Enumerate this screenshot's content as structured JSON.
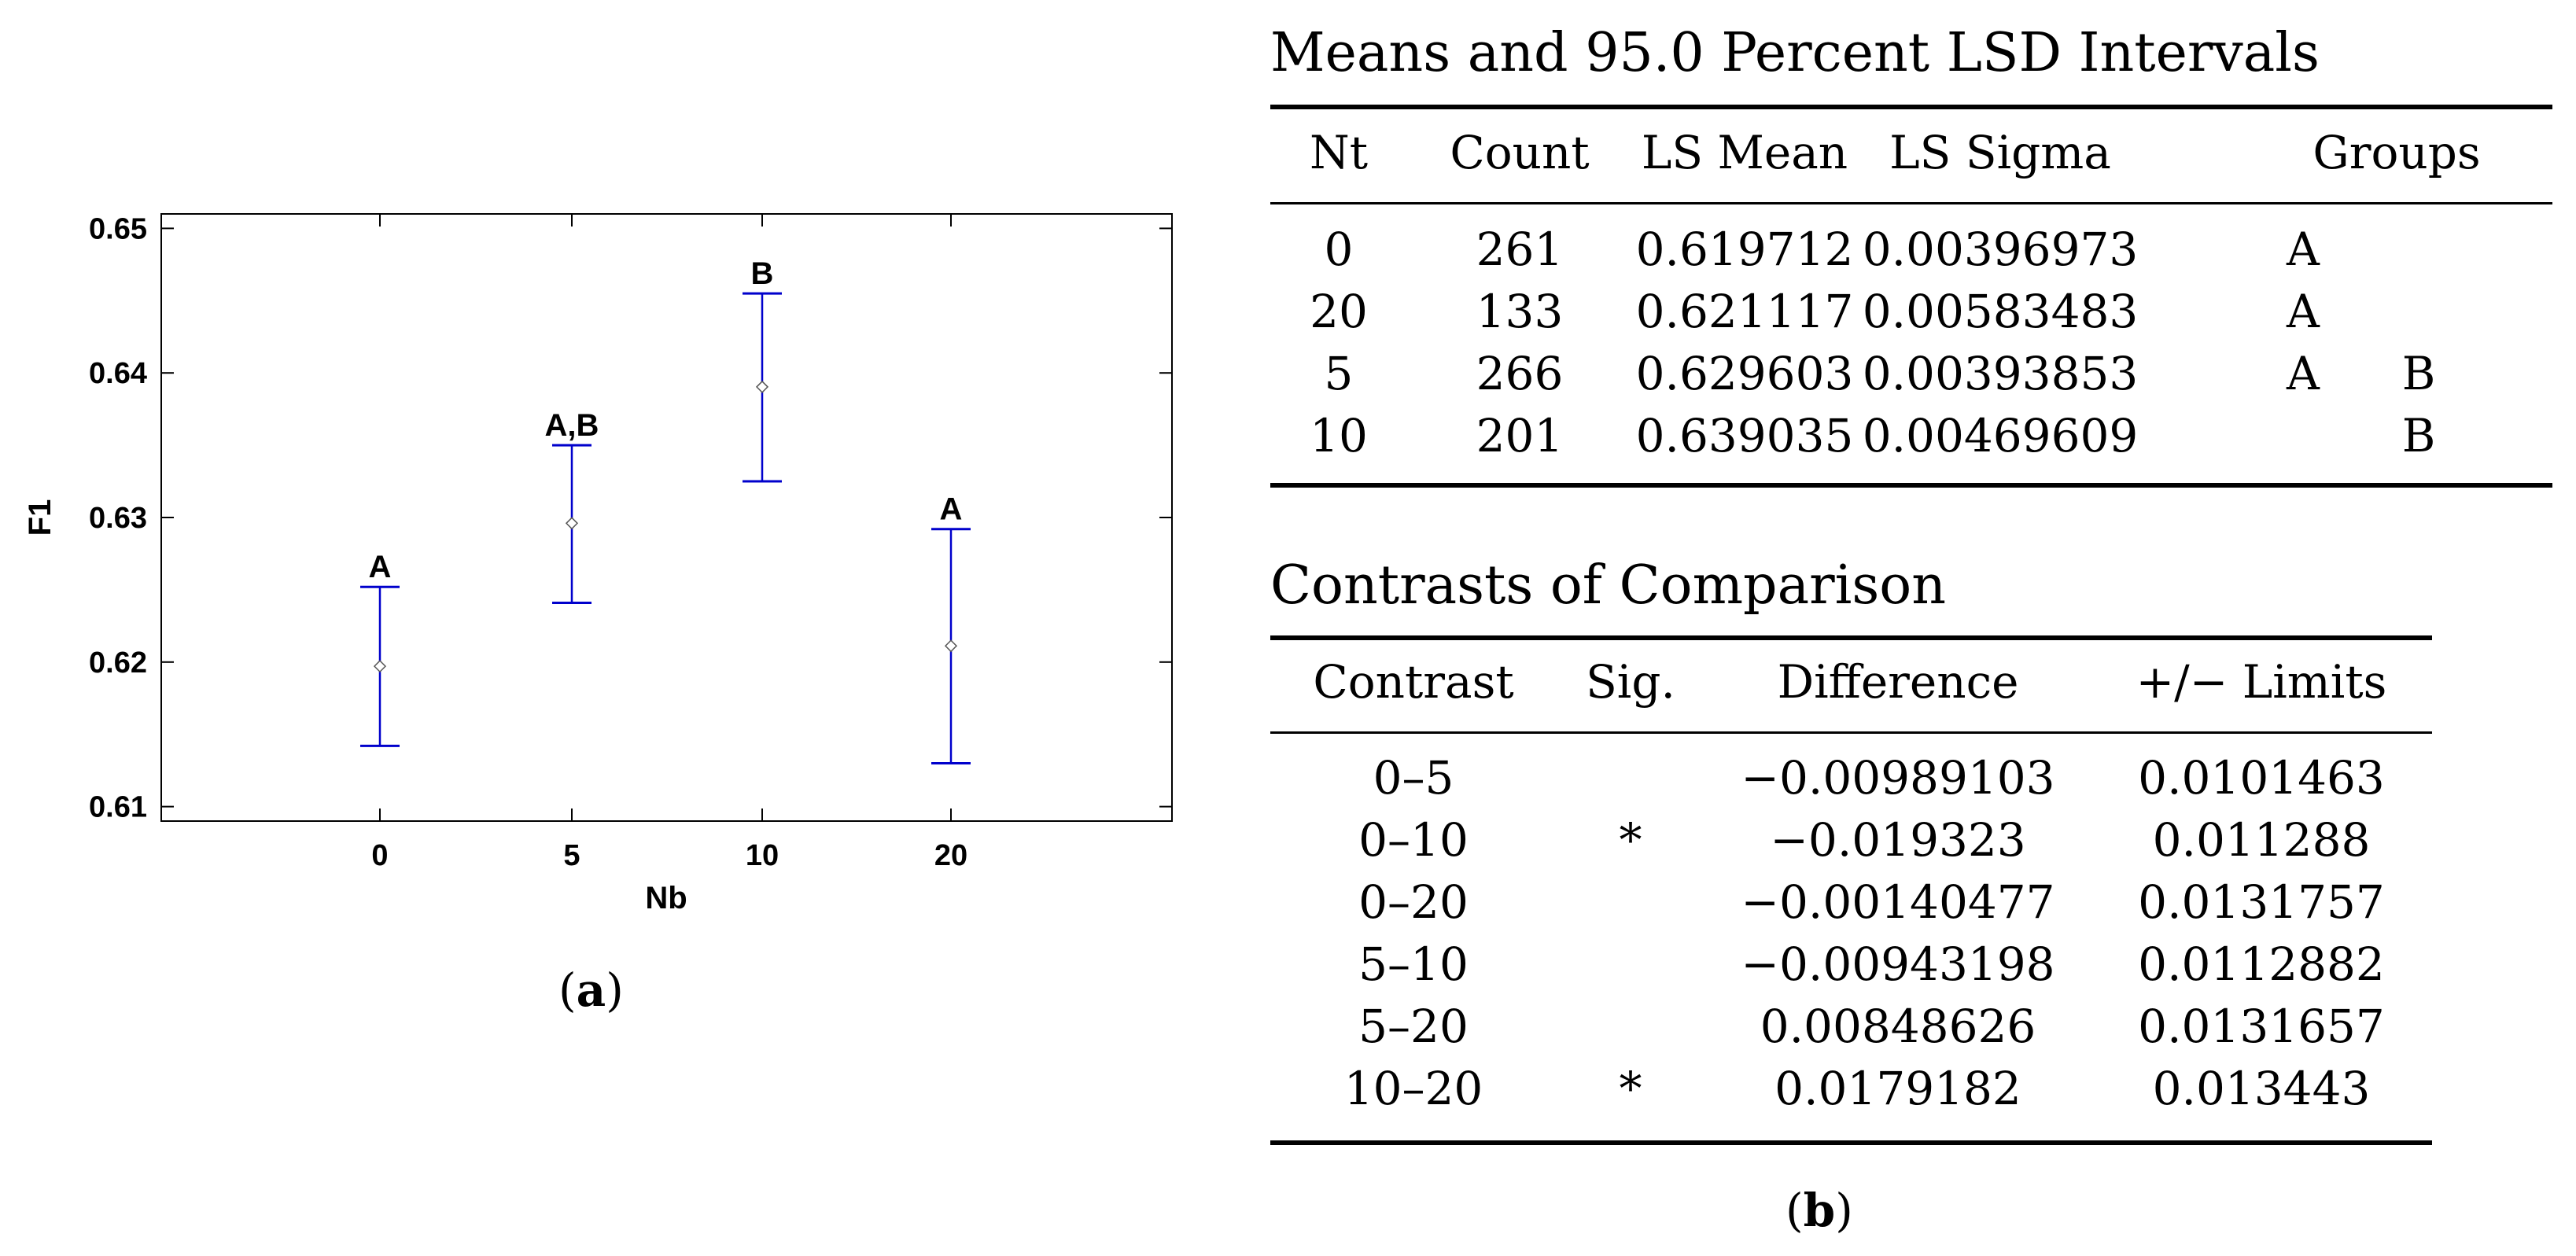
{
  "chart_data": {
    "type": "scatter",
    "subtype": "means-with-lsd-intervals",
    "xlabel": "Nb",
    "ylabel": "F1",
    "categories": [
      "0",
      "5",
      "10",
      "20"
    ],
    "means": [
      0.619712,
      0.629603,
      0.639035,
      0.621117
    ],
    "lower": [
      0.6142,
      0.6241,
      0.6325,
      0.613
    ],
    "upper": [
      0.6252,
      0.635,
      0.6455,
      0.6292
    ],
    "group_labels": [
      "A",
      "A,B",
      "B",
      "A"
    ],
    "ylim": [
      0.609,
      0.651
    ],
    "yticks": [
      0.61,
      0.62,
      0.63,
      0.64,
      0.65
    ],
    "ytick_labels": [
      "0.61",
      "0.62",
      "0.63",
      "0.64",
      "0.65"
    ],
    "interval_color": "#0000cc",
    "marker_color": "#555555"
  },
  "panel_a_label": {
    "open": "(",
    "letter": "a",
    "close": ")"
  },
  "panel_b_label": {
    "open": "(",
    "letter": "b",
    "close": ")"
  },
  "means_table": {
    "title": "Means and 95.0 Percent LSD Intervals",
    "headers": [
      "Nt",
      "Count",
      "LS Mean",
      "LS Sigma",
      "Groups"
    ],
    "rows": [
      {
        "nt": "0",
        "count": "261",
        "mean": "0.619712",
        "sigma": "0.00396973",
        "g1": "A",
        "g2": ""
      },
      {
        "nt": "20",
        "count": "133",
        "mean": "0.621117",
        "sigma": "0.00583483",
        "g1": "A",
        "g2": ""
      },
      {
        "nt": "5",
        "count": "266",
        "mean": "0.629603",
        "sigma": "0.00393853",
        "g1": "A",
        "g2": "B"
      },
      {
        "nt": "10",
        "count": "201",
        "mean": "0.639035",
        "sigma": "0.00469609",
        "g1": "",
        "g2": "B"
      }
    ]
  },
  "contrasts_table": {
    "title": "Contrasts of Comparison",
    "headers": [
      "Contrast",
      "Sig.",
      "Difference",
      "+/− Limits"
    ],
    "rows": [
      {
        "contrast": "0–5",
        "sig": "",
        "diff": "−0.00989103",
        "limits": "0.0101463"
      },
      {
        "contrast": "0–10",
        "sig": "*",
        "diff": "−0.019323",
        "limits": "0.011288"
      },
      {
        "contrast": "0–20",
        "sig": "",
        "diff": "−0.00140477",
        "limits": "0.0131757"
      },
      {
        "contrast": "5–10",
        "sig": "",
        "diff": "−0.00943198",
        "limits": "0.0112882"
      },
      {
        "contrast": "5–20",
        "sig": "",
        "diff": "0.00848626",
        "limits": "0.0131657"
      },
      {
        "contrast": "10–20",
        "sig": "*",
        "diff": "0.0179182",
        "limits": "0.013443"
      }
    ]
  }
}
